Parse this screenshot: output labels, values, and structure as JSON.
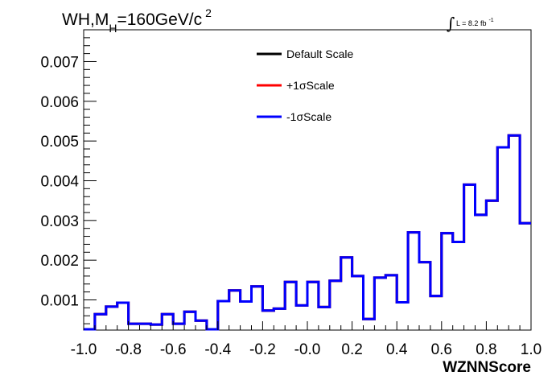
{
  "chart_data": {
    "type": "line",
    "title": {
      "main": "WH,M",
      "sub": "H",
      "rest": "=160GeV/c",
      "sup": "2"
    },
    "lumi": {
      "integral": "∫",
      "text": "L = 8.2 fb",
      "sup": "-1"
    },
    "xlabel": "WZNNScore",
    "ylabel": "",
    "xlim": [
      -1.0,
      1.0
    ],
    "ylim": [
      0.00024,
      0.0078
    ],
    "x_ticks": [
      "-1.0",
      "-0.8",
      "-0.6",
      "-0.4",
      "-0.2",
      "-0.0",
      "0.2",
      "0.4",
      "0.6",
      "0.8",
      "1.0"
    ],
    "y_ticks": [
      "0.001",
      "0.002",
      "0.003",
      "0.004",
      "0.005",
      "0.006",
      "0.007"
    ],
    "bin_edges": [
      -1.0,
      -0.95,
      -0.9,
      -0.85,
      -0.8,
      -0.75,
      -0.7,
      -0.65,
      -0.6,
      -0.55,
      -0.5,
      -0.45,
      -0.4,
      -0.35,
      -0.3,
      -0.25,
      -0.2,
      -0.15,
      -0.1,
      -0.05,
      0.0,
      0.05,
      0.1,
      0.15,
      0.2,
      0.25,
      0.3,
      0.35,
      0.4,
      0.45,
      0.5,
      0.55,
      0.6,
      0.65,
      0.7,
      0.75,
      0.8,
      0.85,
      0.9,
      0.95,
      1.0
    ],
    "legend_position": "top-center",
    "series": [
      {
        "name": "Default Scale",
        "color": "#000000",
        "values": [
          0.00026,
          0.00064,
          0.00083,
          0.00093,
          0.0004,
          0.0004,
          0.00038,
          0.00064,
          0.0004,
          0.0007,
          0.00048,
          0.00026,
          0.00097,
          0.00124,
          0.00096,
          0.00134,
          0.00073,
          0.00078,
          0.00145,
          0.00086,
          0.00145,
          0.00082,
          0.00148,
          0.00207,
          0.0016,
          0.00052,
          0.00156,
          0.00162,
          0.00094,
          0.0027,
          0.00195,
          0.0011,
          0.00268,
          0.00246,
          0.0039,
          0.00314,
          0.0035,
          0.00484,
          0.00514,
          0.00293
        ]
      },
      {
        "name": "+1σScale",
        "color": "#ff0000",
        "values": [
          0.00026,
          0.00064,
          0.00083,
          0.00093,
          0.0004,
          0.0004,
          0.00038,
          0.00064,
          0.0004,
          0.0007,
          0.00048,
          0.00026,
          0.00097,
          0.00124,
          0.00096,
          0.00134,
          0.00073,
          0.00078,
          0.00145,
          0.00086,
          0.00145,
          0.00082,
          0.00148,
          0.00207,
          0.0016,
          0.00052,
          0.00156,
          0.00162,
          0.00094,
          0.0027,
          0.00195,
          0.0011,
          0.00268,
          0.00246,
          0.0039,
          0.00314,
          0.0035,
          0.00484,
          0.00514,
          0.00293
        ]
      },
      {
        "name": "-1σScale",
        "color": "#0000ff",
        "values": [
          0.00026,
          0.00064,
          0.00083,
          0.00093,
          0.0004,
          0.0004,
          0.00038,
          0.00064,
          0.0004,
          0.0007,
          0.00048,
          0.00026,
          0.00097,
          0.00124,
          0.00096,
          0.00134,
          0.00073,
          0.00078,
          0.00145,
          0.00086,
          0.00145,
          0.00082,
          0.00148,
          0.00207,
          0.0016,
          0.00052,
          0.00156,
          0.00162,
          0.00094,
          0.0027,
          0.00195,
          0.0011,
          0.00268,
          0.00246,
          0.0039,
          0.00314,
          0.0035,
          0.00484,
          0.00514,
          0.00293
        ]
      }
    ]
  }
}
